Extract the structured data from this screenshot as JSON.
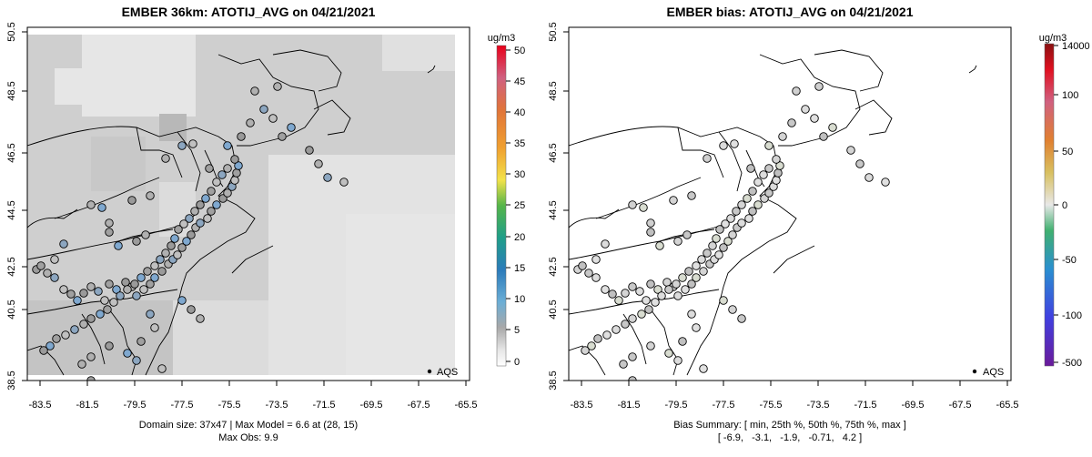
{
  "chart_data": [
    {
      "type": "map",
      "title": "EMBER 36km: ATOTIJ_AVG on 04/21/2021",
      "x_ticks": [
        "-83.5",
        "-81.5",
        "-79.5",
        "-77.5",
        "-75.5",
        "-73.5",
        "-71.5",
        "-69.5",
        "-67.5",
        "-65.5"
      ],
      "y_ticks": [
        "38.5",
        "40.5",
        "42.5",
        "44.5",
        "46.5",
        "48.5",
        "50.5"
      ],
      "xlim": [
        -84.5,
        -65.0
      ],
      "ylim": [
        38.4,
        50.6
      ],
      "colorbar": {
        "title": "ug/m3",
        "ticks": [
          "0",
          "5",
          "10",
          "15",
          "20",
          "25",
          "30",
          "35",
          "40",
          "45",
          "50"
        ],
        "range": [
          -1,
          51
        ]
      },
      "legend": {
        "label": "AQS",
        "position": "bottom-right"
      },
      "footer": [
        "Domain size: 37x47 | Max Model = 6.6 at (28, 15)",
        "Max Obs: 9.9"
      ]
    },
    {
      "type": "map",
      "title": "EMBER bias: ATOTIJ_AVG on 04/21/2021",
      "x_ticks": [
        "-83.5",
        "-81.5",
        "-79.5",
        "-77.5",
        "-75.5",
        "-73.5",
        "-71.5",
        "-69.5",
        "-67.5",
        "-65.5"
      ],
      "y_ticks": [
        "38.5",
        "40.5",
        "42.5",
        "44.5",
        "46.5",
        "48.5",
        "50.5"
      ],
      "xlim": [
        -84.5,
        -65.0
      ],
      "ylim": [
        38.4,
        50.6
      ],
      "colorbar": {
        "title": "ug/m3",
        "ticks": [
          "14000",
          "100",
          "50",
          "0",
          "-50",
          "-100",
          "-500"
        ],
        "range": [
          -500,
          14000
        ]
      },
      "legend": {
        "label": "AQS",
        "position": "bottom-right"
      },
      "footer": [
        "Bias Summary: [ min, 25th %, 50th %, 75th %, max ]",
        "[ -6.9,   -3.1,   -1.9,   -0.71,   4.2 ]"
      ],
      "bias_summary": {
        "min": -6.9,
        "p25": -3.1,
        "p50": -1.9,
        "p75": -0.71,
        "max": 4.2
      }
    }
  ]
}
